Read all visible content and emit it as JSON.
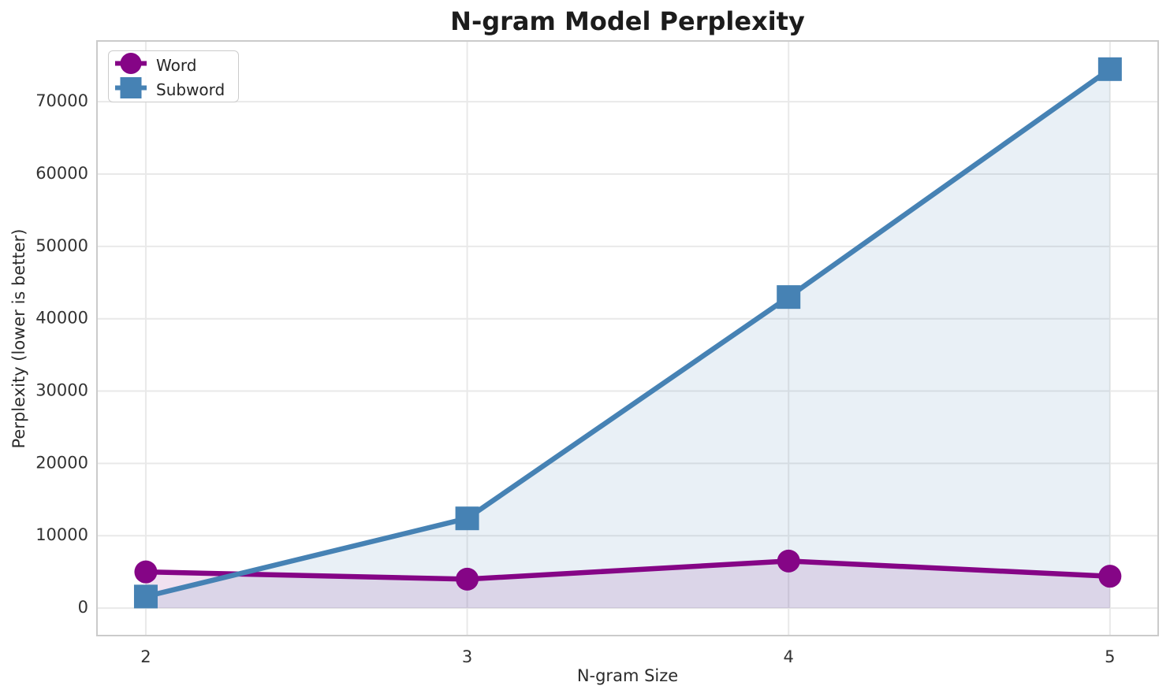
{
  "chart_data": {
    "type": "line",
    "title": "N-gram Model Perplexity",
    "xlabel": "N-gram Size",
    "ylabel": "Perplexity (lower is better)",
    "x": [
      2,
      3,
      4,
      5
    ],
    "xticklabels": [
      "2",
      "3",
      "4",
      "5"
    ],
    "series": [
      {
        "name": "Word",
        "marker": "circle",
        "color": "#850586",
        "fill_color": "#850586",
        "fill_alpha": 0.12,
        "values": [
          5000,
          4000,
          6500,
          4400
        ]
      },
      {
        "name": "Subword",
        "marker": "square",
        "color": "#4682B4",
        "fill_color": "#4682B4",
        "fill_alpha": 0.12,
        "values": [
          1600,
          12400,
          43000,
          74500
        ]
      }
    ],
    "yticks": [
      0,
      10000,
      20000,
      30000,
      40000,
      50000,
      60000,
      70000
    ],
    "yticklabels": [
      "0",
      "10000",
      "20000",
      "30000",
      "40000",
      "50000",
      "60000",
      "70000"
    ],
    "xlim": [
      1.848,
      5.15
    ],
    "ylim": [
      -3800,
      78400
    ],
    "grid": true,
    "grid_color": "#e9e9e9",
    "frame_color": "#cbcbcb",
    "legend_position": "upper left",
    "legend_entries": [
      "Word",
      "Subword"
    ]
  },
  "colors": {
    "background": "#ffffff",
    "title_text": "#1c1c1c",
    "tick_text": "#333333",
    "word_series": "#850586",
    "subword_series": "#4682B4"
  }
}
